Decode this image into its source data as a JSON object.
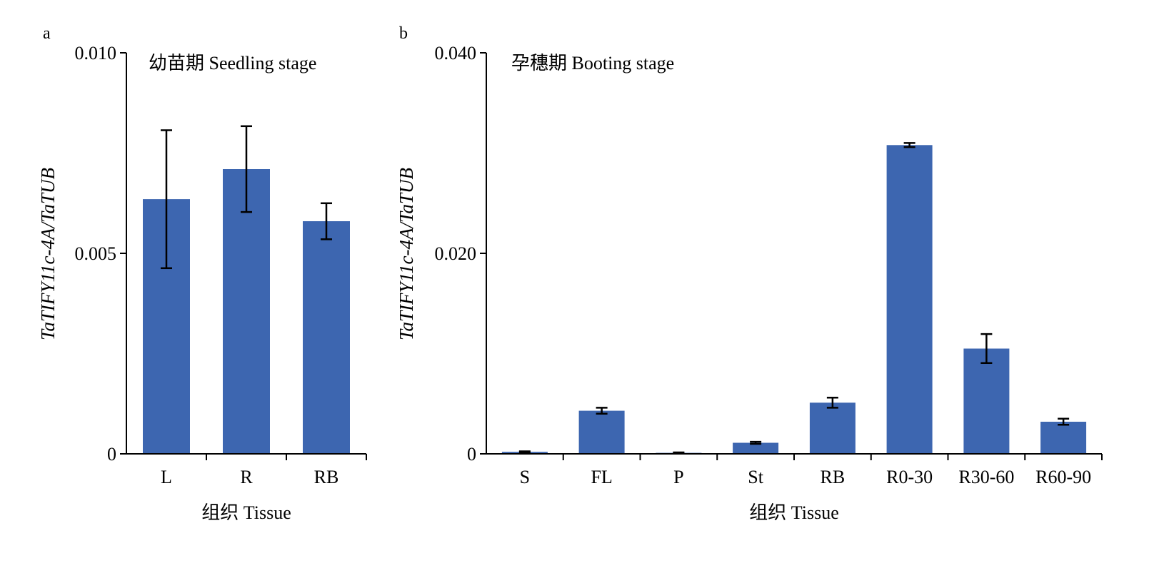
{
  "chart_data": [
    {
      "type": "bar",
      "panel_label": "a",
      "title": "幼苗期 Seedling stage",
      "xlabel": "组织 Tissue",
      "ylabel": "TaTIFY11c-4A/TaTUB",
      "ylim": [
        0,
        0.01
      ],
      "yticks": [
        0,
        0.005,
        0.01
      ],
      "ytick_labels": [
        "0",
        "0.005",
        "0.010"
      ],
      "categories": [
        "L",
        "R",
        "RB"
      ],
      "values": [
        0.00635,
        0.0071,
        0.0058
      ],
      "errors": [
        0.00172,
        0.00107,
        0.00045
      ],
      "color": "#3d66b0",
      "grid": false
    },
    {
      "type": "bar",
      "panel_label": "b",
      "title": "孕穗期 Booting stage",
      "xlabel": "组织 Tissue",
      "ylabel": "TaTIFY11c-4A/TaTUB",
      "ylim": [
        0,
        0.04
      ],
      "yticks": [
        0,
        0.02,
        0.04
      ],
      "ytick_labels": [
        "0",
        "0.020",
        "0.040"
      ],
      "categories": [
        "S",
        "FL",
        "P",
        "St",
        "RB",
        "R0-30",
        "R30-60",
        "R60-90"
      ],
      "values": [
        0.0002,
        0.0043,
        0.0001,
        0.0011,
        0.0051,
        0.0308,
        0.0105,
        0.0032
      ],
      "errors": [
        5e-05,
        0.0003,
        4e-05,
        0.0001,
        0.0005,
        0.0002,
        0.00145,
        0.0003
      ],
      "color": "#3d66b0",
      "grid": false
    }
  ]
}
